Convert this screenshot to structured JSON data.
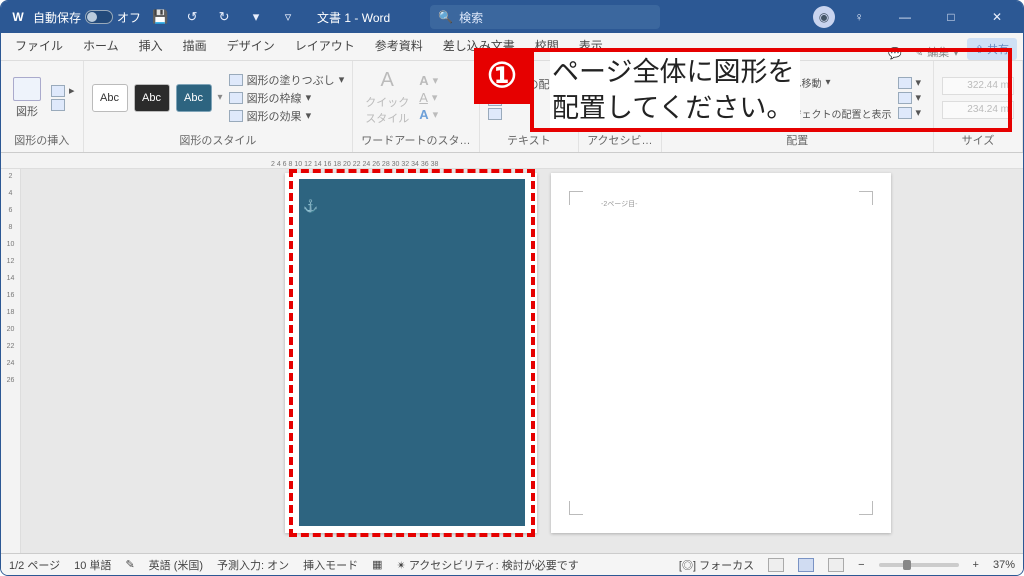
{
  "colors": {
    "titlebar": "#2c5894",
    "accent": "#e60000",
    "shape_fill": "#2d6480"
  },
  "titlebar": {
    "autosave_label": "自動保存",
    "autosave_state": "オフ",
    "doc_title": "文書 1 - Word",
    "search_placeholder": "検索"
  },
  "tabs": {
    "items": [
      "ファイル",
      "ホーム",
      "挿入",
      "描画",
      "デザイン",
      "レイアウト",
      "参考資料",
      "差し込み文書",
      "校閲",
      "表示"
    ],
    "right_edit": "編集"
  },
  "ribbon": {
    "g0": {
      "label": "図形の挿入",
      "btn": "図形"
    },
    "g1": {
      "label": "図形のスタイル",
      "abc": "Abc",
      "fill": "図形の塗りつぶし",
      "outline": "図形の枠線",
      "effects": "図形の効果"
    },
    "g2": {
      "label": "ワードアートのスタ…",
      "quick": "クイック\nスタイル"
    },
    "g3": {
      "label": "テキスト",
      "txtdir": "文字の配置"
    },
    "g4": {
      "label": "アクセシビ…"
    },
    "g5": {
      "label": "配置",
      "front": "前面へ移動",
      "wrap": "オブジェクトの配置と表示"
    },
    "g6": {
      "label": "サイズ",
      "w": "322.44 m",
      "h": "234.24 m"
    }
  },
  "ruler": {
    "h": "2 4 6 8 10 12 14 16 18 20 22 24 26 28 30 32 34 36 38"
  },
  "pages": {
    "p2_header": "-2ページ目-"
  },
  "status": {
    "page": "1/2 ページ",
    "words": "10 単語",
    "lang": "英語 (米国)",
    "predict": "予測入力: オン",
    "insert": "挿入モード",
    "a11y": "アクセシビリティ: 検討が必要です",
    "focus": "フォーカス",
    "zoom": "37%"
  },
  "annotation": {
    "badge": "①",
    "text": "ページ全体に図形を\n配置してください。"
  }
}
